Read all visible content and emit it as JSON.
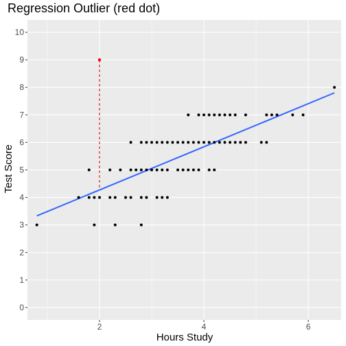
{
  "chart_data": {
    "type": "scatter",
    "title": "Regression Outlier (red dot)",
    "xlabel": "Hours Study",
    "ylabel": "Test Score",
    "xlim": [
      0.62,
      6.63
    ],
    "ylim": [
      -0.45,
      10.45
    ],
    "xticks": [
      2,
      4,
      6
    ],
    "yticks": [
      0,
      1,
      2,
      3,
      4,
      5,
      6,
      7,
      8,
      9,
      10
    ],
    "grid": true,
    "legend": "none",
    "colors": {
      "panel": "#ebebeb",
      "grid": "#ffffff",
      "points": "#000000",
      "outlier": "#ff0000",
      "regression_line": "#3366ff",
      "residual": "#cc0000"
    },
    "points": [
      {
        "x": 0.8,
        "y": 3
      },
      {
        "x": 1.6,
        "y": 4
      },
      {
        "x": 1.8,
        "y": 4
      },
      {
        "x": 1.8,
        "y": 5
      },
      {
        "x": 1.9,
        "y": 3
      },
      {
        "x": 1.9,
        "y": 4
      },
      {
        "x": 2.0,
        "y": 4
      },
      {
        "x": 2.2,
        "y": 4
      },
      {
        "x": 2.2,
        "y": 5
      },
      {
        "x": 2.3,
        "y": 3
      },
      {
        "x": 2.3,
        "y": 4
      },
      {
        "x": 2.4,
        "y": 5
      },
      {
        "x": 2.5,
        "y": 4
      },
      {
        "x": 2.6,
        "y": 4
      },
      {
        "x": 2.6,
        "y": 5
      },
      {
        "x": 2.6,
        "y": 6
      },
      {
        "x": 2.7,
        "y": 5
      },
      {
        "x": 2.8,
        "y": 3
      },
      {
        "x": 2.8,
        "y": 4
      },
      {
        "x": 2.8,
        "y": 5
      },
      {
        "x": 2.8,
        "y": 6
      },
      {
        "x": 2.9,
        "y": 4
      },
      {
        "x": 2.9,
        "y": 5
      },
      {
        "x": 2.9,
        "y": 6
      },
      {
        "x": 3.0,
        "y": 5
      },
      {
        "x": 3.0,
        "y": 6
      },
      {
        "x": 3.1,
        "y": 4
      },
      {
        "x": 3.1,
        "y": 5
      },
      {
        "x": 3.1,
        "y": 6
      },
      {
        "x": 3.2,
        "y": 4
      },
      {
        "x": 3.2,
        "y": 5
      },
      {
        "x": 3.2,
        "y": 6
      },
      {
        "x": 3.3,
        "y": 4
      },
      {
        "x": 3.3,
        "y": 5
      },
      {
        "x": 3.3,
        "y": 6
      },
      {
        "x": 3.4,
        "y": 6
      },
      {
        "x": 3.5,
        "y": 5
      },
      {
        "x": 3.5,
        "y": 6
      },
      {
        "x": 3.6,
        "y": 5
      },
      {
        "x": 3.6,
        "y": 6
      },
      {
        "x": 3.7,
        "y": 5
      },
      {
        "x": 3.7,
        "y": 6
      },
      {
        "x": 3.7,
        "y": 7
      },
      {
        "x": 3.8,
        "y": 5
      },
      {
        "x": 3.8,
        "y": 6
      },
      {
        "x": 3.9,
        "y": 5
      },
      {
        "x": 3.9,
        "y": 6
      },
      {
        "x": 3.9,
        "y": 7
      },
      {
        "x": 4.0,
        "y": 6
      },
      {
        "x": 4.0,
        "y": 7
      },
      {
        "x": 4.1,
        "y": 5
      },
      {
        "x": 4.1,
        "y": 6
      },
      {
        "x": 4.1,
        "y": 7
      },
      {
        "x": 4.2,
        "y": 5
      },
      {
        "x": 4.2,
        "y": 6
      },
      {
        "x": 4.2,
        "y": 7
      },
      {
        "x": 4.3,
        "y": 6
      },
      {
        "x": 4.3,
        "y": 7
      },
      {
        "x": 4.4,
        "y": 6
      },
      {
        "x": 4.4,
        "y": 7
      },
      {
        "x": 4.5,
        "y": 6
      },
      {
        "x": 4.5,
        "y": 7
      },
      {
        "x": 4.6,
        "y": 6
      },
      {
        "x": 4.6,
        "y": 7
      },
      {
        "x": 4.7,
        "y": 6
      },
      {
        "x": 4.8,
        "y": 6
      },
      {
        "x": 4.8,
        "y": 7
      },
      {
        "x": 5.1,
        "y": 6
      },
      {
        "x": 5.2,
        "y": 6
      },
      {
        "x": 5.2,
        "y": 7
      },
      {
        "x": 5.3,
        "y": 7
      },
      {
        "x": 5.4,
        "y": 7
      },
      {
        "x": 5.7,
        "y": 7
      },
      {
        "x": 5.9,
        "y": 7
      },
      {
        "x": 6.5,
        "y": 8
      }
    ],
    "outlier": {
      "x": 2.0,
      "y": 9
    },
    "regression_line": {
      "x": [
        0.8,
        6.5
      ],
      "y": [
        3.33,
        7.8
      ]
    }
  }
}
